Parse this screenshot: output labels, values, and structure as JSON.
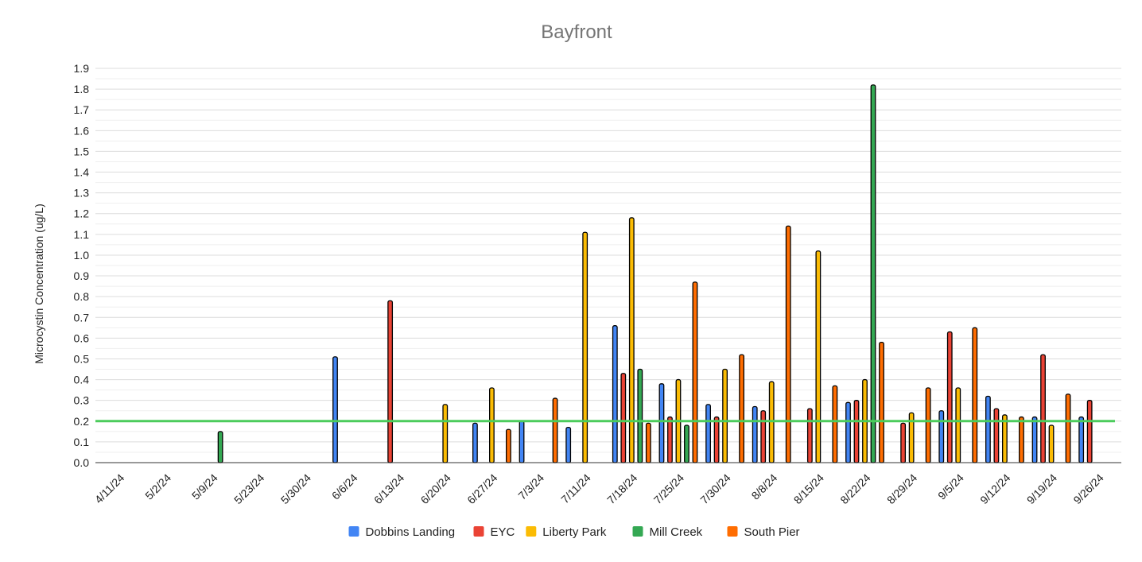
{
  "chart_data": {
    "type": "bar",
    "title": "Bayfront",
    "xlabel": "",
    "ylabel": "Microcystin Concentration (ug/L)",
    "ylim": [
      0,
      1.9
    ],
    "ytick_step": 0.1,
    "grid": true,
    "legend_position": "bottom",
    "categories": [
      "4/11/24",
      "5/2/24",
      "5/9/24",
      "5/23/24",
      "5/30/24",
      "6/6/24",
      "6/13/24",
      "6/20/24",
      "6/27/24",
      "7/3/24",
      "7/11/24",
      "7/18/24",
      "7/25/24",
      "7/30/24",
      "8/8/24",
      "8/15/24",
      "8/22/24",
      "8/29/24",
      "9/5/24",
      "9/12/24",
      "9/19/24",
      "9/26/24"
    ],
    "series": [
      {
        "name": "Dobbins Landing",
        "color": "#4285f4",
        "values": [
          null,
          null,
          null,
          null,
          null,
          0.51,
          null,
          null,
          0.19,
          0.2,
          0.17,
          0.66,
          0.38,
          0.28,
          0.27,
          null,
          0.29,
          null,
          0.25,
          0.32,
          0.22,
          0.22
        ]
      },
      {
        "name": "EYC",
        "color": "#ea4335",
        "values": [
          null,
          null,
          null,
          null,
          null,
          null,
          0.78,
          null,
          null,
          null,
          null,
          0.43,
          0.22,
          0.22,
          0.25,
          0.26,
          0.3,
          0.19,
          0.63,
          0.26,
          0.52,
          0.3
        ]
      },
      {
        "name": "Liberty Park",
        "color": "#fbbc04",
        "values": [
          null,
          null,
          null,
          null,
          null,
          null,
          null,
          0.28,
          0.36,
          null,
          1.11,
          1.18,
          0.4,
          0.45,
          0.39,
          1.02,
          0.4,
          0.24,
          0.36,
          0.23,
          0.18,
          null
        ]
      },
      {
        "name": "Mill Creek",
        "color": "#34a853",
        "values": [
          null,
          null,
          0.15,
          null,
          null,
          null,
          null,
          null,
          null,
          null,
          null,
          0.45,
          0.18,
          null,
          null,
          null,
          1.82,
          null,
          null,
          null,
          null,
          null
        ]
      },
      {
        "name": "South Pier",
        "color": "#ff6d01",
        "values": [
          null,
          null,
          null,
          null,
          null,
          null,
          null,
          null,
          0.16,
          0.31,
          null,
          0.19,
          0.87,
          0.52,
          1.14,
          0.37,
          0.58,
          0.36,
          0.65,
          0.22,
          0.33,
          null
        ]
      }
    ],
    "threshold": {
      "value": 0.2,
      "color": "#4ccc5c"
    }
  }
}
